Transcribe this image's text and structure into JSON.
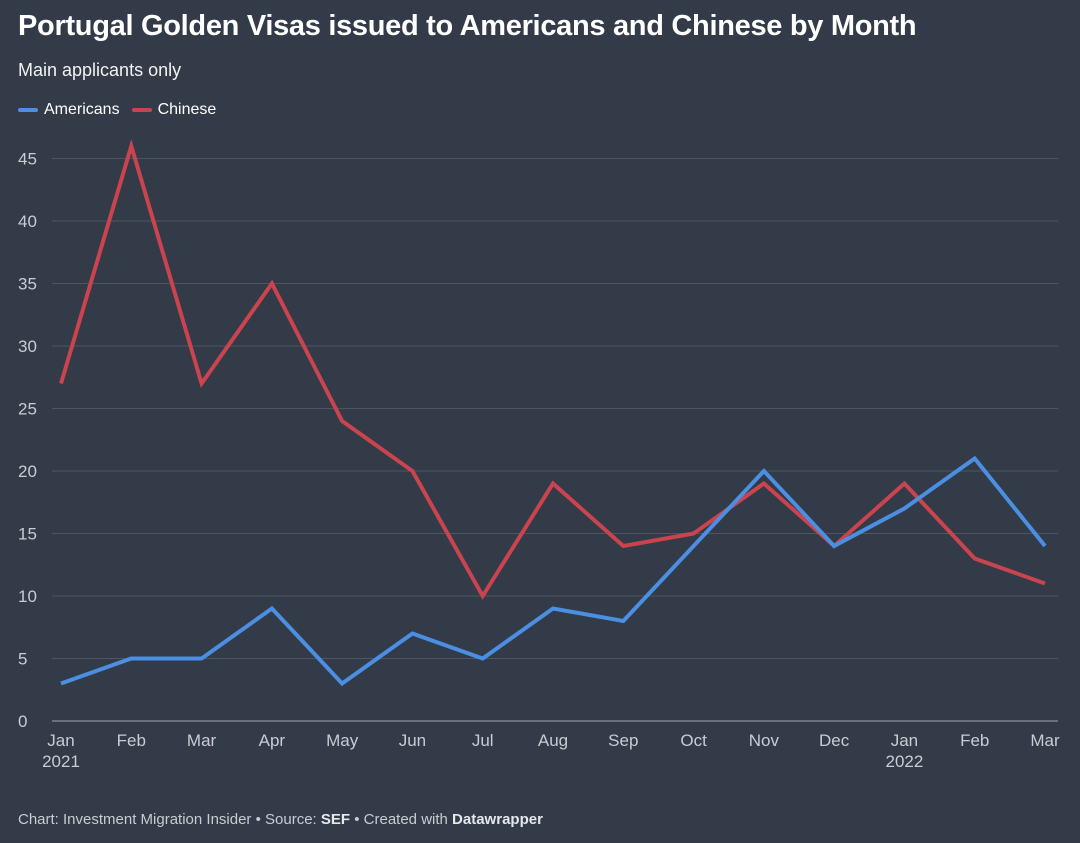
{
  "title": "Portugal Golden Visas issued to Americans and Chinese by Month",
  "subtitle": "Main applicants only",
  "legend": [
    {
      "label": "Americans",
      "color": "#4a8fe2"
    },
    {
      "label": "Chinese",
      "color": "#c9444e"
    }
  ],
  "footer": {
    "prefix": "Chart: Investment Migration Insider • Source: ",
    "source": "SEF",
    "middle": " • Created with ",
    "tool": "Datawrapper"
  },
  "chart_data": {
    "type": "line",
    "x": [
      "Jan",
      "Feb",
      "Mar",
      "Apr",
      "May",
      "Jun",
      "Jul",
      "Aug",
      "Sep",
      "Oct",
      "Nov",
      "Dec",
      "Jan",
      "Feb",
      "Mar"
    ],
    "x_year_labels": {
      "0": "2021",
      "12": "2022"
    },
    "series": [
      {
        "name": "Americans",
        "color": "#4a8fe2",
        "values": [
          3,
          5,
          5,
          9,
          3,
          7,
          5,
          9,
          8,
          14,
          20,
          14,
          17,
          21,
          14
        ]
      },
      {
        "name": "Chinese",
        "color": "#c9444e",
        "values": [
          27,
          46,
          27,
          35,
          24,
          20,
          10,
          19,
          14,
          15,
          19,
          14,
          19,
          13,
          11
        ]
      }
    ],
    "yticks": [
      0,
      5,
      10,
      15,
      20,
      25,
      30,
      35,
      40,
      45
    ],
    "ylim": [
      0,
      46
    ],
    "grid": true,
    "legend_position": "top-left"
  }
}
